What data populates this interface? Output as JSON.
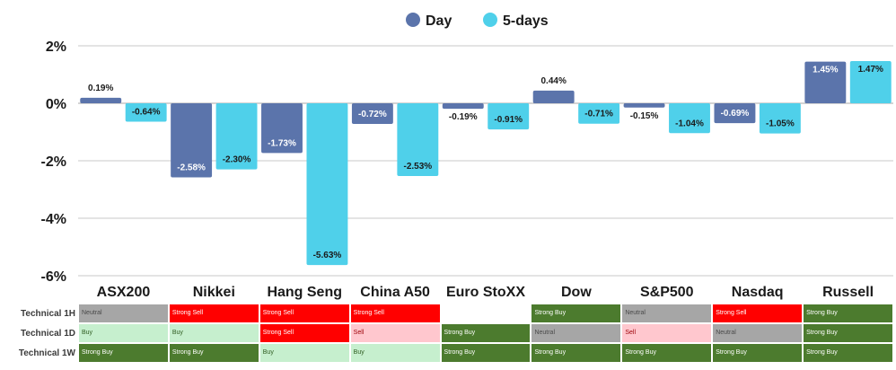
{
  "chart_data": {
    "type": "bar",
    "categories": [
      "ASX200",
      "Nikkei",
      "Hang Seng",
      "China A50",
      "Euro StoXX",
      "Dow",
      "S&P500",
      "Nasdaq",
      "Russell"
    ],
    "series": [
      {
        "name": "Day",
        "values": [
          0.19,
          -2.58,
          -1.73,
          -0.72,
          -0.19,
          0.44,
          -0.15,
          -0.69,
          1.45
        ],
        "labels": [
          "0.19%",
          "-2.58%",
          "-1.73%",
          "-0.72%",
          "-0.19%",
          "0.44%",
          "-0.15%",
          "-0.69%",
          "1.45%"
        ]
      },
      {
        "name": "5-days",
        "values": [
          -0.64,
          -2.3,
          -5.63,
          -2.53,
          -0.91,
          -0.71,
          -1.04,
          -1.05,
          1.47
        ],
        "labels": [
          "-0.64%",
          "-2.30%",
          "-5.63%",
          "-2.53%",
          "-0.91%",
          "-0.71%",
          "-1.04%",
          "-1.05%",
          "1.47%"
        ]
      }
    ],
    "ylim": [
      -6,
      2
    ],
    "yticks": [
      2,
      0,
      -2,
      -4,
      -6
    ],
    "ytick_labels": [
      "2%",
      "0%",
      "-2%",
      "-4%",
      "-6%"
    ],
    "grid": true,
    "legend": "top-center"
  },
  "colors": {
    "day": "#5b74ab",
    "five_days": "#4fd0ea",
    "grid": "#c9c9c9",
    "zero_line": "#a9a9a9"
  },
  "technical_table": {
    "rows": [
      {
        "label": "Technical 1H",
        "cells": [
          "Neutral",
          "Strong Sell",
          "Strong Sell",
          "Strong Sell",
          "",
          "Strong Buy",
          "Neutral",
          "Strong Sell",
          "Strong Buy"
        ]
      },
      {
        "label": "Technical 1D",
        "cells": [
          "Buy",
          "Buy",
          "Strong Sell",
          "Sell",
          "Strong Buy",
          "Neutral",
          "Sell",
          "Neutral",
          "Strong Buy"
        ]
      },
      {
        "label": "Technical 1W",
        "cells": [
          "Strong Buy",
          "Strong Buy",
          "Buy",
          "Buy",
          "Strong Buy",
          "Strong Buy",
          "Strong Buy",
          "Strong Buy",
          "Strong Buy"
        ]
      }
    ],
    "signal_colors": {
      "Strong Buy": {
        "bg": "#4c7b2e",
        "fg": "#ffffff"
      },
      "Buy": {
        "bg": "#c6efce",
        "fg": "#2e5b1f"
      },
      "Neutral": {
        "bg": "#a6a6a6",
        "fg": "#4a4a4a"
      },
      "Sell": {
        "bg": "#ffc7ce",
        "fg": "#9c0006"
      },
      "Strong Sell": {
        "bg": "#ff0000",
        "fg": "#ffffff"
      },
      "": {
        "bg": "#ffffff",
        "fg": "#ffffff"
      }
    }
  }
}
